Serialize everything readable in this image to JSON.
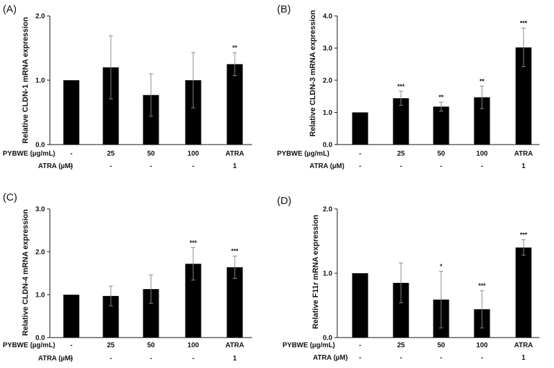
{
  "chart_data": [
    {
      "type": "bar",
      "panel": "(A)",
      "ylabel": "Relative  CLDN-1 mRNA expression",
      "ylim": [
        0,
        2
      ],
      "yticks": [
        "0.0",
        "1.0",
        "2.0"
      ],
      "categories": [
        "-",
        "25",
        "50",
        "100",
        "ATRA"
      ],
      "atra_row": [
        "-",
        "-",
        "-",
        "-",
        "1"
      ],
      "values": [
        1.0,
        1.2,
        0.77,
        1.0,
        1.25
      ],
      "errors": [
        0,
        0.49,
        0.33,
        0.43,
        0.18
      ],
      "significance": [
        "",
        "",
        "",
        "",
        "**"
      ]
    },
    {
      "type": "bar",
      "panel": "(B)",
      "ylabel": "Relative  CLDN-3 mRNA expression",
      "ylim": [
        0,
        4
      ],
      "yticks": [
        "0.0",
        "1.0",
        "2.0",
        "3.0",
        "4.0"
      ],
      "categories": [
        "-",
        "25",
        "50",
        "100",
        "ATRA"
      ],
      "atra_row": [
        "-",
        "-",
        "-",
        "-",
        "1"
      ],
      "values": [
        1.0,
        1.44,
        1.18,
        1.47,
        3.02
      ],
      "errors": [
        0,
        0.22,
        0.14,
        0.35,
        0.6
      ],
      "significance": [
        "",
        "***",
        "**",
        "**",
        "***"
      ]
    },
    {
      "type": "bar",
      "panel": "(C)",
      "ylabel": "Relative  CLDN-4 mRNA expression",
      "ylim": [
        0,
        3
      ],
      "yticks": [
        "0.0",
        "1.0",
        "2.0",
        "3.0"
      ],
      "categories": [
        "-",
        "25",
        "50",
        "100",
        "ATRA"
      ],
      "atra_row": [
        "-",
        "-",
        "-",
        "-",
        "1"
      ],
      "values": [
        1.0,
        0.97,
        1.13,
        1.72,
        1.64
      ],
      "errors": [
        0,
        0.23,
        0.33,
        0.38,
        0.26
      ],
      "significance": [
        "",
        "",
        "",
        "***",
        "***"
      ]
    },
    {
      "type": "bar",
      "panel": "(D)",
      "ylabel": "Relative  F11r mRNA expression",
      "ylim": [
        0,
        2
      ],
      "yticks": [
        "0.0",
        "1.0",
        "2.0"
      ],
      "categories": [
        "-",
        "25",
        "50",
        "100",
        "ATRA"
      ],
      "atra_row": [
        "-",
        "-",
        "-",
        "-",
        "1"
      ],
      "values": [
        1.0,
        0.85,
        0.59,
        0.44,
        1.4
      ],
      "errors": [
        0,
        0.31,
        0.44,
        0.29,
        0.12
      ],
      "significance": [
        "",
        "",
        "*",
        "***",
        "***"
      ]
    }
  ],
  "row_labels": {
    "pybwe": "PYBWE (µg/mL)",
    "atra": "ATRA (µM)"
  },
  "colors": {
    "bar": "#000000",
    "axis": "#111111",
    "error": "#888888"
  }
}
